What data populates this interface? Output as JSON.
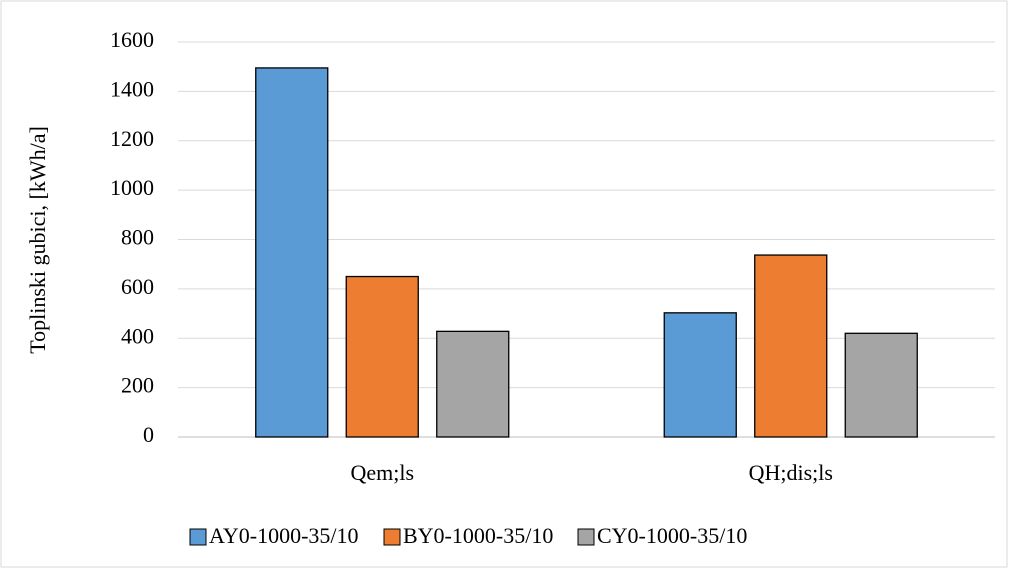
{
  "chart_data": {
    "type": "bar",
    "y_label": "Toplinski gubici, [kWh/a]",
    "categories": [
      "Qem;ls",
      "QH;dis;ls"
    ],
    "series": [
      {
        "name": "AY0-1000-35/10",
        "color": "#5b9bd5",
        "values": [
          1495,
          503
        ]
      },
      {
        "name": "BY0-1000-35/10",
        "color": "#ed7d31",
        "values": [
          650,
          737
        ]
      },
      {
        "name": "CY0-1000-35/10",
        "color": "#a5a5a5",
        "values": [
          428,
          420
        ]
      }
    ],
    "ylim": [
      0,
      1600
    ],
    "yticks": [
      0,
      200,
      400,
      600,
      800,
      1000,
      1200,
      1400,
      1600
    ],
    "grid": true,
    "legend": "bottom"
  }
}
